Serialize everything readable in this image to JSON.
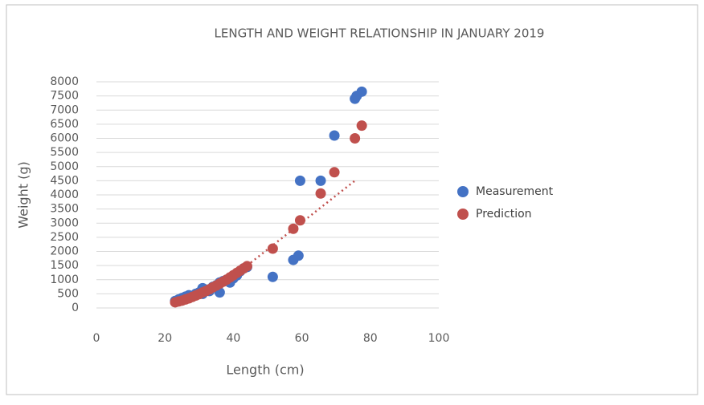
{
  "chart_data": {
    "type": "scatter",
    "title": "LENGTH AND WEIGHT RELATIONSHIP IN JANUARY 2019",
    "x_label": "Length  (cm)",
    "y_label": "Weight (g)",
    "xlim": [
      0,
      100
    ],
    "xticks": [
      0,
      20,
      40,
      60,
      80,
      100
    ],
    "ylim": [
      0,
      8000
    ],
    "yticks": [
      0,
      500,
      1000,
      1500,
      2000,
      2500,
      3000,
      3500,
      4000,
      4500,
      5000,
      5500,
      6000,
      6500,
      7000,
      7500,
      8000
    ],
    "grid": true,
    "legend": "right",
    "series": [
      {
        "name": "Measurement",
        "color": "#4472c4",
        "x": [
          23,
          24,
          25,
          26,
          27,
          28,
          29,
          30,
          31,
          31,
          32,
          33,
          34,
          35,
          36,
          36,
          37,
          38,
          39,
          40,
          41,
          42,
          43,
          44,
          51.5,
          57.5,
          59,
          59.5,
          65.5,
          69.5,
          75.5,
          76,
          77.5
        ],
        "values": [
          250,
          300,
          350,
          400,
          450,
          400,
          500,
          550,
          700,
          500,
          650,
          600,
          750,
          800,
          550,
          900,
          950,
          1000,
          900,
          1050,
          1150,
          1300,
          1400,
          1450,
          1100,
          1700,
          1850,
          4500,
          4500,
          6100,
          7400,
          7500,
          7650
        ]
      },
      {
        "name": "Prediction",
        "color": "#c0504d",
        "x": [
          23,
          24,
          25,
          26,
          27,
          28,
          29,
          30,
          31,
          32,
          33,
          34,
          35,
          36,
          37,
          38,
          39,
          40,
          41,
          42,
          43,
          44,
          51.5,
          57.5,
          59.5,
          65.5,
          69.5,
          75.5,
          77.5
        ],
        "values": [
          200,
          230,
          260,
          300,
          340,
          390,
          440,
          490,
          550,
          600,
          660,
          730,
          790,
          860,
          930,
          1000,
          1080,
          1160,
          1240,
          1320,
          1400,
          1480,
          2100,
          2800,
          3100,
          4050,
          4800,
          6000,
          6450
        ]
      }
    ],
    "trendline": {
      "color": "#c0504d",
      "x": [
        44,
        76
      ],
      "values": [
        1500,
        4550
      ]
    }
  }
}
